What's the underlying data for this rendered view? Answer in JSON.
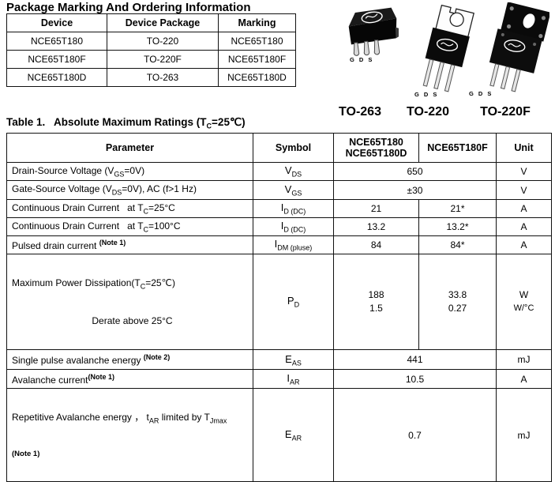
{
  "page": {
    "title": "Package Marking And Ordering Information"
  },
  "ordering_table": {
    "headers": [
      "Device",
      "Device Package",
      "Marking"
    ],
    "rows": [
      [
        "NCE65T180",
        "TO-220",
        "NCE65T180"
      ],
      [
        "NCE65T180F",
        "TO-220F",
        "NCE65T180F"
      ],
      [
        "NCE65T180D",
        "TO-263",
        "NCE65T180D"
      ]
    ]
  },
  "packages": {
    "items": [
      {
        "caption": "TO-263",
        "pins": "G D S"
      },
      {
        "caption": "TO-220",
        "pins": "G D S"
      },
      {
        "caption": "TO-220F",
        "pins": "G D S"
      }
    ]
  },
  "ratings_table": {
    "title_segments": [
      {
        "t": "Table 1.   Absolute Maximum Ratings (T"
      },
      {
        "sub": "C"
      },
      {
        "t": "=25℃)"
      }
    ],
    "headers": {
      "parameter": "Parameter",
      "symbol": "Symbol",
      "device_a1": "NCE65T180",
      "device_a2": "NCE65T180D",
      "device_b": "NCE65T180F",
      "unit": "Unit"
    },
    "rows": {
      "vds": {
        "param": [
          {
            "t": "Drain-Source Voltage (V"
          },
          {
            "sub": "GS"
          },
          {
            "t": "=0V)"
          }
        ],
        "symbol": [
          {
            "t": "V"
          },
          {
            "sub": "DS"
          }
        ],
        "value": "650",
        "unit": "V"
      },
      "vgs": {
        "param": [
          {
            "t": "Gate-Source Voltage (V"
          },
          {
            "sub": "DS"
          },
          {
            "t": "=0V), AC (f>1 Hz)"
          }
        ],
        "symbol": [
          {
            "t": "V"
          },
          {
            "sub": "GS"
          }
        ],
        "value": "±30",
        "unit": "V"
      },
      "id25": {
        "param": [
          {
            "t": "Continuous Drain Current   at T"
          },
          {
            "sub": "C"
          },
          {
            "t": "=25°C"
          }
        ],
        "symbol": [
          {
            "t": "I"
          },
          {
            "sub": "D (DC)"
          }
        ],
        "v1": "21",
        "v2": "21*",
        "unit": "A"
      },
      "id100": {
        "param": [
          {
            "t": "Continuous Drain Current   at T"
          },
          {
            "sub": "C"
          },
          {
            "t": "=100°C"
          }
        ],
        "symbol": [
          {
            "t": "I"
          },
          {
            "sub": "D (DC)"
          }
        ],
        "v1": "13.2",
        "v2": "13.2*",
        "unit": "A"
      },
      "idm": {
        "param": [
          {
            "t": "Pulsed drain current "
          },
          {
            "sup": "(Note 1)",
            "b": true
          }
        ],
        "symbol": [
          {
            "t": "I"
          },
          {
            "sub": "DM (pluse)"
          }
        ],
        "v1": "84",
        "v2": "84*",
        "unit": "A"
      },
      "pd": {
        "param1": [
          {
            "t": "Maximum Power Dissipation(T"
          },
          {
            "sub": "C"
          },
          {
            "t": "=25℃)"
          }
        ],
        "param2": "Derate above 25°C",
        "symbol": [
          {
            "t": "P"
          },
          {
            "sub": "D"
          }
        ],
        "v1a": "188",
        "v1b": "33.8",
        "v2a": "1.5",
        "v2b": "0.27",
        "unit1": "W",
        "unit2": "W/°C"
      },
      "eas": {
        "param": [
          {
            "t": "Single pulse avalanche energy "
          },
          {
            "sup": "(Note 2)",
            "b": true
          }
        ],
        "symbol": [
          {
            "t": "E"
          },
          {
            "sub": "AS"
          }
        ],
        "value": "441",
        "unit": "mJ"
      },
      "iar": {
        "param": [
          {
            "t": "Avalanche current"
          },
          {
            "sup": "(Note 1)",
            "b": true
          }
        ],
        "symbol": [
          {
            "t": "I"
          },
          {
            "sub": "AR"
          }
        ],
        "value": "10.5",
        "unit": "A"
      },
      "ear": {
        "param": [
          {
            "t": "Repetitive Avalanche energy ， t"
          },
          {
            "sub": "AR"
          },
          {
            "t": " limited by T"
          },
          {
            "sub": "Jmax"
          }
        ],
        "note": "(Note 1)",
        "symbol": [
          {
            "t": "E"
          },
          {
            "sub": "AR"
          }
        ],
        "value": "0.7",
        "unit": "mJ"
      }
    }
  }
}
